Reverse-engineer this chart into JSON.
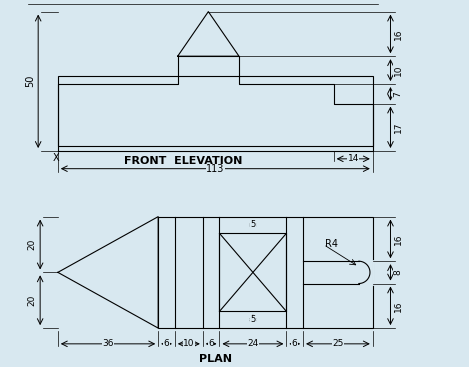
{
  "bg_color": "#d8e8f0",
  "line_color": "#000000",
  "dim_color": "#333333",
  "fig_width": 4.69,
  "fig_height": 3.67,
  "dpi": 100,
  "title_front": "FRONT  ELEVATION",
  "title_plan": "PLAN",
  "front_dim_113": "113",
  "front_dim_14": "14",
  "front_dim_50": "50",
  "front_dim_16": "16",
  "front_dim_10": "10",
  "front_dim_7": "7",
  "front_dim_17": "17",
  "plan_dim_36": "36",
  "plan_dim_6a": "6",
  "plan_dim_10": "10",
  "plan_dim_6b": "6",
  "plan_dim_24": "24",
  "plan_dim_6c": "6",
  "plan_dim_25": "25",
  "plan_dim_20a": "20",
  "plan_dim_20b": "20",
  "plan_dim_16a": "16",
  "plan_dim_8": "8",
  "plan_dim_16b": "16",
  "plan_dim_5a": "5",
  "plan_dim_5b": "5",
  "plan_r4": "R4"
}
